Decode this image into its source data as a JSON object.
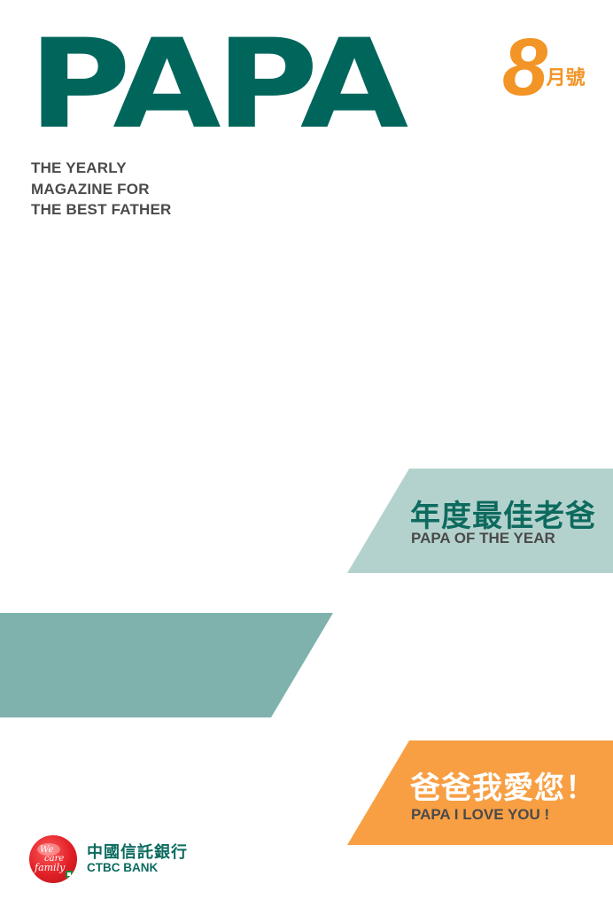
{
  "masthead": {
    "title": "PAPA",
    "tagline": [
      "THE YEARLY",
      "MAGAZINE FOR",
      "THE BEST FATHER"
    ],
    "issue_number": "8",
    "issue_label": "月號"
  },
  "banners": {
    "award": {
      "title_zh": "年度最佳老爸",
      "title_en": "PAPA OF THE YEAR",
      "color": "#b4d2cd"
    },
    "middle": {
      "color": "#7fb2ac"
    },
    "love": {
      "title_zh": "爸爸我愛您！",
      "title_en": "PAPA I LOVE YOU !",
      "color": "#f89f44"
    }
  },
  "bank": {
    "badge_text": "We care family",
    "name_zh": "中國信託銀行",
    "name_en": "CTBC BANK"
  },
  "colors": {
    "brand_green": "#00665c",
    "accent_orange": "#f39427"
  }
}
